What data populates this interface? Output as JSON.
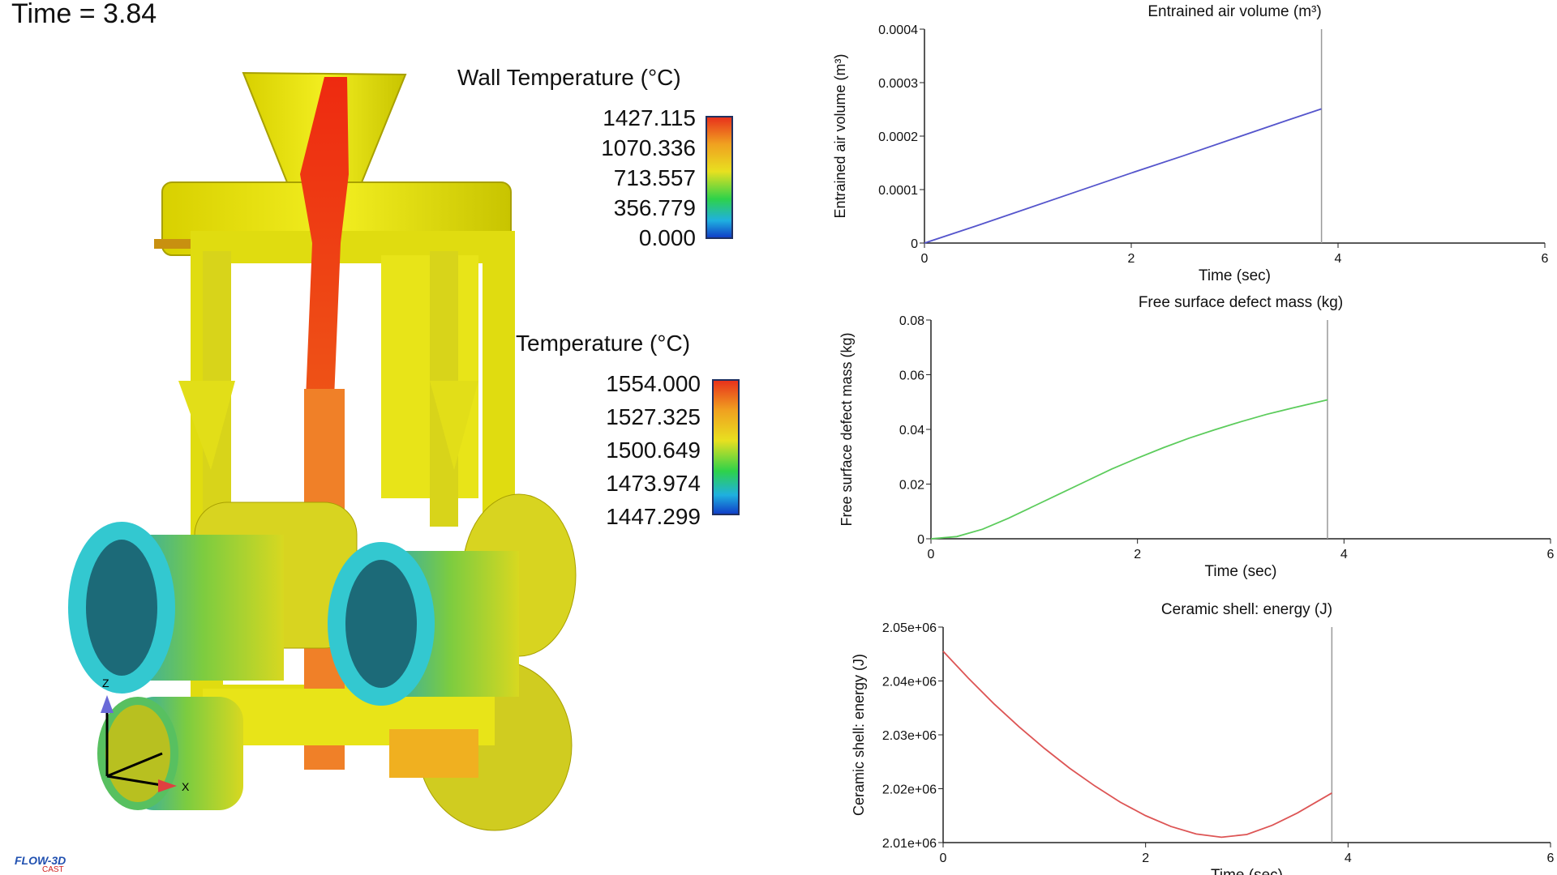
{
  "time_label": "Time = 3.84",
  "wall_legend": {
    "title": "Wall Temperature (°C)",
    "values": [
      "1427.115",
      "1070.336",
      "713.557",
      "356.779",
      "0.000"
    ]
  },
  "temp_legend": {
    "title": "Temperature (°C)",
    "values": [
      "1554.000",
      "1527.325",
      "1500.649",
      "1473.974",
      "1447.299"
    ]
  },
  "axes_labels": {
    "x": "X",
    "z": "Z"
  },
  "logo": {
    "main": "FLOW-3D",
    "sub": "CAST"
  },
  "colors": {
    "air": "#5555cc",
    "defect": "#5ccc5c",
    "energy": "#dd5555"
  },
  "chart_data": [
    {
      "type": "line",
      "title": "Entrained air volume (m³)",
      "xlabel": "Time (sec)",
      "ylabel": "Entrained air volume (m³)",
      "xlim": [
        0,
        6
      ],
      "ylim": [
        0,
        0.0004
      ],
      "xticks": [
        "0",
        "2",
        "4",
        "6"
      ],
      "yticks": [
        "0",
        "0.0001",
        "0.0002",
        "0.0003",
        "0.0004"
      ],
      "marker_x": 3.84,
      "series": [
        {
          "x": [
            0,
            0.5,
            1,
            1.5,
            2,
            2.5,
            3,
            3.5,
            3.84
          ],
          "y": [
            0,
            3.2e-05,
            6.5e-05,
            9.8e-05,
            0.000131,
            0.000163,
            0.000196,
            0.000229,
            0.000251
          ]
        }
      ]
    },
    {
      "type": "line",
      "title": "Free surface defect mass (kg)",
      "xlabel": "Time (sec)",
      "ylabel": "Free surface defect mass (kg)",
      "xlim": [
        0,
        6
      ],
      "ylim": [
        0,
        0.08
      ],
      "xticks": [
        "0",
        "2",
        "4",
        "6"
      ],
      "yticks": [
        "0",
        "0.02",
        "0.04",
        "0.06",
        "0.08"
      ],
      "marker_x": 3.84,
      "series": [
        {
          "x": [
            0,
            0.25,
            0.5,
            0.75,
            1,
            1.25,
            1.5,
            1.75,
            2,
            2.25,
            2.5,
            2.75,
            3,
            3.25,
            3.5,
            3.84
          ],
          "y": [
            0,
            0.0008,
            0.0035,
            0.0075,
            0.012,
            0.0165,
            0.021,
            0.0255,
            0.0295,
            0.0333,
            0.0368,
            0.0399,
            0.0428,
            0.0455,
            0.0478,
            0.0508
          ]
        }
      ]
    },
    {
      "type": "line",
      "title": "Ceramic shell: energy (J)",
      "xlabel": "Time (sec)",
      "ylabel": "Ceramic shell: energy (J)",
      "xlim": [
        0,
        6
      ],
      "ylim": [
        2010000,
        2050000
      ],
      "xticks": [
        "0",
        "2",
        "4",
        "6"
      ],
      "yticks": [
        "2.01e+06",
        "2.02e+06",
        "2.03e+06",
        "2.04e+06",
        "2.05e+06"
      ],
      "marker_x": 3.84,
      "series": [
        {
          "x": [
            0,
            0.25,
            0.5,
            0.75,
            1,
            1.25,
            1.5,
            1.75,
            2,
            2.25,
            2.5,
            2.75,
            3,
            3.25,
            3.5,
            3.84
          ],
          "y": [
            2045500,
            2040500,
            2035800,
            2031500,
            2027500,
            2023800,
            2020500,
            2017500,
            2015000,
            2013000,
            2011600,
            2011000,
            2011500,
            2013200,
            2015500,
            2019200
          ]
        }
      ]
    }
  ]
}
